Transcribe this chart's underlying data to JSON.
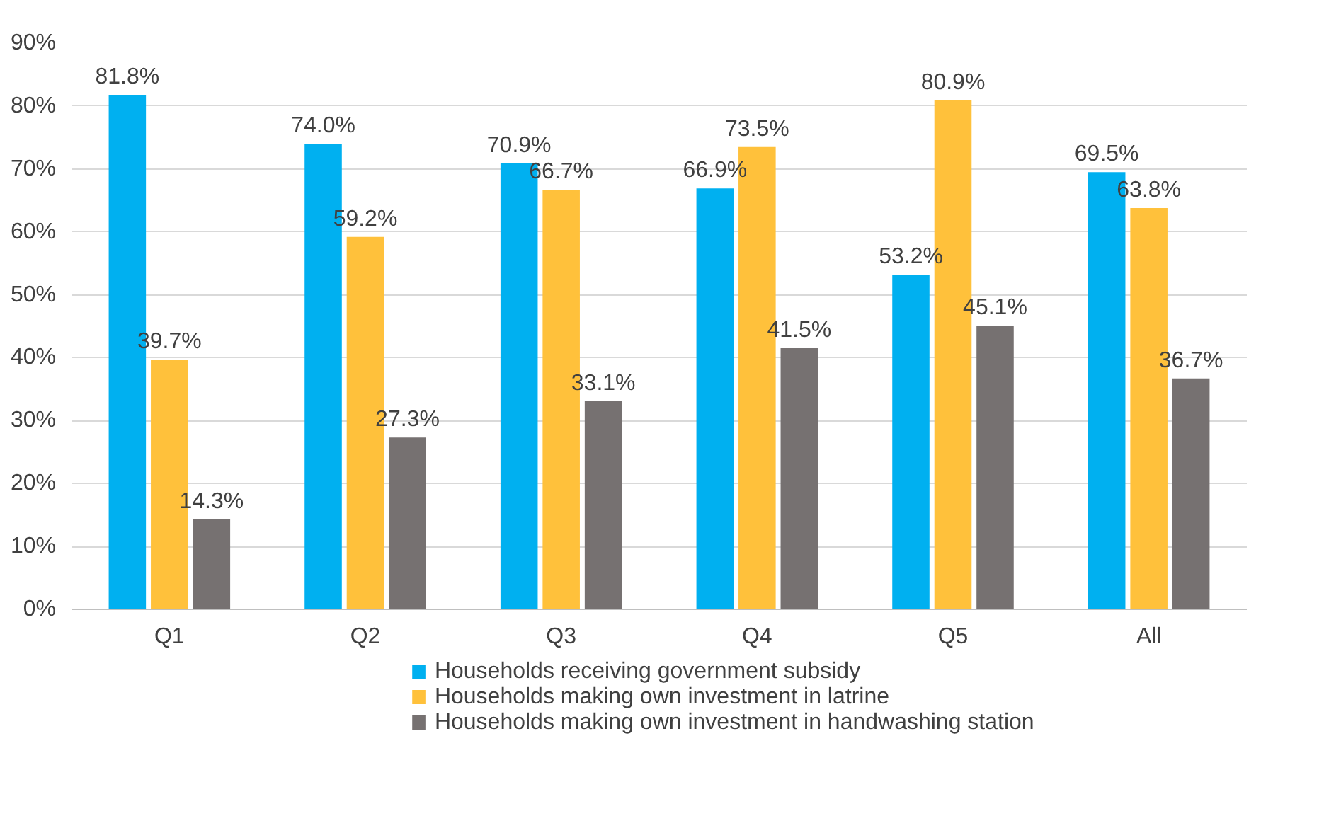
{
  "chart_data": {
    "type": "bar",
    "categories": [
      "Q1",
      "Q2",
      "Q3",
      "Q4",
      "Q5",
      "All"
    ],
    "series": [
      {
        "name": "Households receiving government subsidy",
        "color": "#00b0f0",
        "values": [
          81.8,
          74.0,
          70.9,
          66.9,
          53.2,
          69.5
        ],
        "value_labels": [
          "81.8%",
          "74.0%",
          "70.9%",
          "66.9%",
          "53.2%",
          "69.5%"
        ]
      },
      {
        "name": "Households making own investment in latrine",
        "color": "#ffc13b",
        "values": [
          39.7,
          59.2,
          66.7,
          73.5,
          80.9,
          63.8
        ],
        "value_labels": [
          "39.7%",
          "59.2%",
          "66.7%",
          "73.5%",
          "80.9%",
          "63.8%"
        ]
      },
      {
        "name": "Households making own investment in handwashing station",
        "color": "#767171",
        "values": [
          14.3,
          27.3,
          33.1,
          41.5,
          45.1,
          36.7
        ],
        "value_labels": [
          "14.3%",
          "27.3%",
          "33.1%",
          "41.5%",
          "45.1%",
          "36.7%"
        ]
      }
    ],
    "ylim": [
      0,
      90
    ],
    "yticks": [
      {
        "value": 0,
        "label": "0%"
      },
      {
        "value": 10,
        "label": "10%"
      },
      {
        "value": 20,
        "label": "20%"
      },
      {
        "value": 30,
        "label": "30%"
      },
      {
        "value": 40,
        "label": "40%"
      },
      {
        "value": 50,
        "label": "50%"
      },
      {
        "value": 60,
        "label": "60%"
      },
      {
        "value": 70,
        "label": "70%"
      },
      {
        "value": 80,
        "label": "80%"
      },
      {
        "value": 90,
        "label": "90%"
      }
    ],
    "grid": "y",
    "legend": "bottom"
  }
}
